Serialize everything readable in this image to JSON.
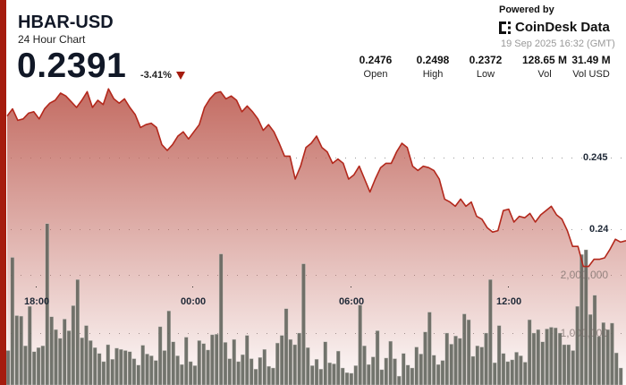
{
  "header": {
    "title": "HBAR-USD",
    "subtitle": "24 Hour Chart",
    "price": "0.2391",
    "change": "-3.41%",
    "change_direction": "down"
  },
  "branding": {
    "powered_by": "Powered by",
    "brand": "CoinDesk Data",
    "timestamp": "19 Sep 2025 16:32 (GMT)"
  },
  "stats": [
    {
      "value": "0.2476",
      "label": "Open"
    },
    {
      "value": "0.2498",
      "label": "High"
    },
    {
      "value": "0.2372",
      "label": "Low"
    },
    {
      "value": "128.65 M",
      "label": "Vol"
    },
    {
      "value": "31.49 M",
      "label": "Vol USD"
    }
  ],
  "colors": {
    "accent": "#a51c0e",
    "line": "#b3281c",
    "volume": "#5f625a"
  },
  "chart_data": {
    "type": "line",
    "x_ticks": [
      "18:00",
      "00:00",
      "06:00",
      "12:00"
    ],
    "price_ticks": [
      "0.245",
      "0.24"
    ],
    "volume_ticks": [
      "2,000,000",
      "1,000,000"
    ],
    "price_range": [
      0.2372,
      0.2498
    ],
    "grid": "dotted horizontal",
    "prices": [
      0.2479,
      0.2484,
      0.2476,
      0.2477,
      0.2481,
      0.2482,
      0.2477,
      0.2484,
      0.2488,
      0.249,
      0.2495,
      0.2493,
      0.2489,
      0.2485,
      0.249,
      0.2496,
      0.2485,
      0.249,
      0.2487,
      0.2498,
      0.2491,
      0.2488,
      0.2491,
      0.2485,
      0.248,
      0.2471,
      0.2473,
      0.2474,
      0.2471,
      0.2459,
      0.2455,
      0.2459,
      0.2465,
      0.2468,
      0.2463,
      0.2468,
      0.2473,
      0.2485,
      0.2491,
      0.2495,
      0.2496,
      0.2491,
      0.2493,
      0.249,
      0.2482,
      0.2486,
      0.2482,
      0.2477,
      0.2469,
      0.2473,
      0.2468,
      0.246,
      0.2451,
      0.2451,
      0.2435,
      0.2444,
      0.2457,
      0.246,
      0.2465,
      0.2457,
      0.2454,
      0.2446,
      0.2449,
      0.2446,
      0.2435,
      0.2438,
      0.2444,
      0.2435,
      0.2426,
      0.2435,
      0.2443,
      0.2446,
      0.2446,
      0.2454,
      0.246,
      0.2457,
      0.2444,
      0.2441,
      0.2444,
      0.2443,
      0.2441,
      0.2435,
      0.2421,
      0.2419,
      0.2416,
      0.2421,
      0.2416,
      0.2419,
      0.2409,
      0.2407,
      0.2401,
      0.2398,
      0.2399,
      0.2413,
      0.2414,
      0.2405,
      0.2409,
      0.2408,
      0.2411,
      0.2405,
      0.241,
      0.2413,
      0.2416,
      0.241,
      0.2407,
      0.2399,
      0.2388,
      0.2388,
      0.2374,
      0.2374,
      0.2379,
      0.2379,
      0.238,
      0.2386,
      0.2393,
      0.2391,
      0.2392
    ],
    "volumes": [
      700000,
      2300000,
      1300000,
      1290000,
      780000,
      1460000,
      680000,
      750000,
      780000,
      2880000,
      1280000,
      1060000,
      910000,
      1240000,
      1040000,
      1470000,
      1920000,
      920000,
      1130000,
      870000,
      750000,
      650000,
      510000,
      800000,
      550000,
      740000,
      720000,
      700000,
      680000,
      560000,
      450000,
      790000,
      640000,
      610000,
      530000,
      1110000,
      700000,
      1380000,
      850000,
      610000,
      460000,
      930000,
      510000,
      440000,
      870000,
      820000,
      710000,
      970000,
      980000,
      2360000,
      840000,
      560000,
      890000,
      510000,
      630000,
      960000,
      560000,
      380000,
      580000,
      720000,
      430000,
      400000,
      830000,
      960000,
      1420000,
      890000,
      800000,
      1000000,
      2190000,
      750000,
      440000,
      550000,
      380000,
      850000,
      490000,
      470000,
      690000,
      400000,
      320000,
      310000,
      440000,
      1480000,
      780000,
      460000,
      590000,
      1040000,
      370000,
      570000,
      860000,
      560000,
      260000,
      650000,
      450000,
      400000,
      760000,
      640000,
      1020000,
      1360000,
      620000,
      460000,
      530000,
      1000000,
      810000,
      950000,
      910000,
      1330000,
      1230000,
      600000,
      780000,
      760000,
      1000000,
      1920000,
      490000,
      1130000,
      650000,
      510000,
      540000,
      670000,
      610000,
      500000,
      1230000,
      1000000,
      1060000,
      850000,
      1070000,
      1100000,
      1090000,
      1000000,
      800000,
      800000,
      700000,
      1460000,
      2350000,
      2430000,
      1320000,
      1650000,
      940000,
      1180000,
      1060000,
      1170000,
      660000,
      400000
    ]
  }
}
